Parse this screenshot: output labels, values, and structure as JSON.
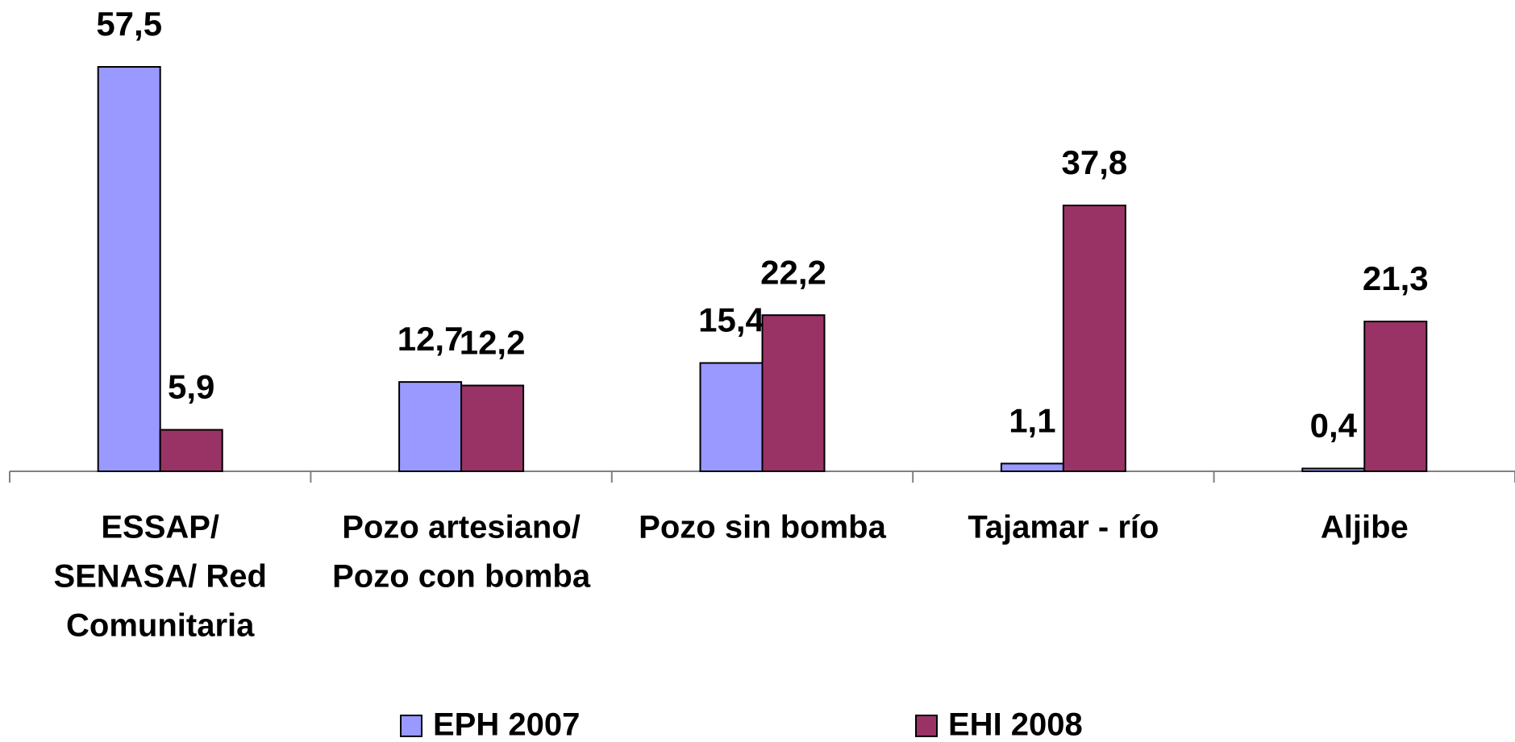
{
  "chart_data": {
    "type": "bar",
    "categories": [
      [
        "ESSAP/",
        "SENASA/ Red",
        "Comunitaria"
      ],
      [
        "Pozo artesiano/",
        "Pozo con bomba"
      ],
      [
        "Pozo sin bomba"
      ],
      [
        "Tajamar - río"
      ],
      [
        "Aljibe"
      ]
    ],
    "series": [
      {
        "name": "EPH 2007",
        "color": "#9999ff",
        "values": [
          57.5,
          12.7,
          15.4,
          1.1,
          0.4
        ],
        "value_labels": [
          "57,5",
          "12,7",
          "15,4",
          "1,1",
          "0,4"
        ]
      },
      {
        "name": "EHI 2008",
        "color": "#993366",
        "values": [
          5.9,
          12.2,
          22.2,
          37.8,
          21.3
        ],
        "value_labels": [
          "5,9",
          "12,2",
          "22,2",
          "37,8",
          "21,3"
        ]
      }
    ]
  }
}
